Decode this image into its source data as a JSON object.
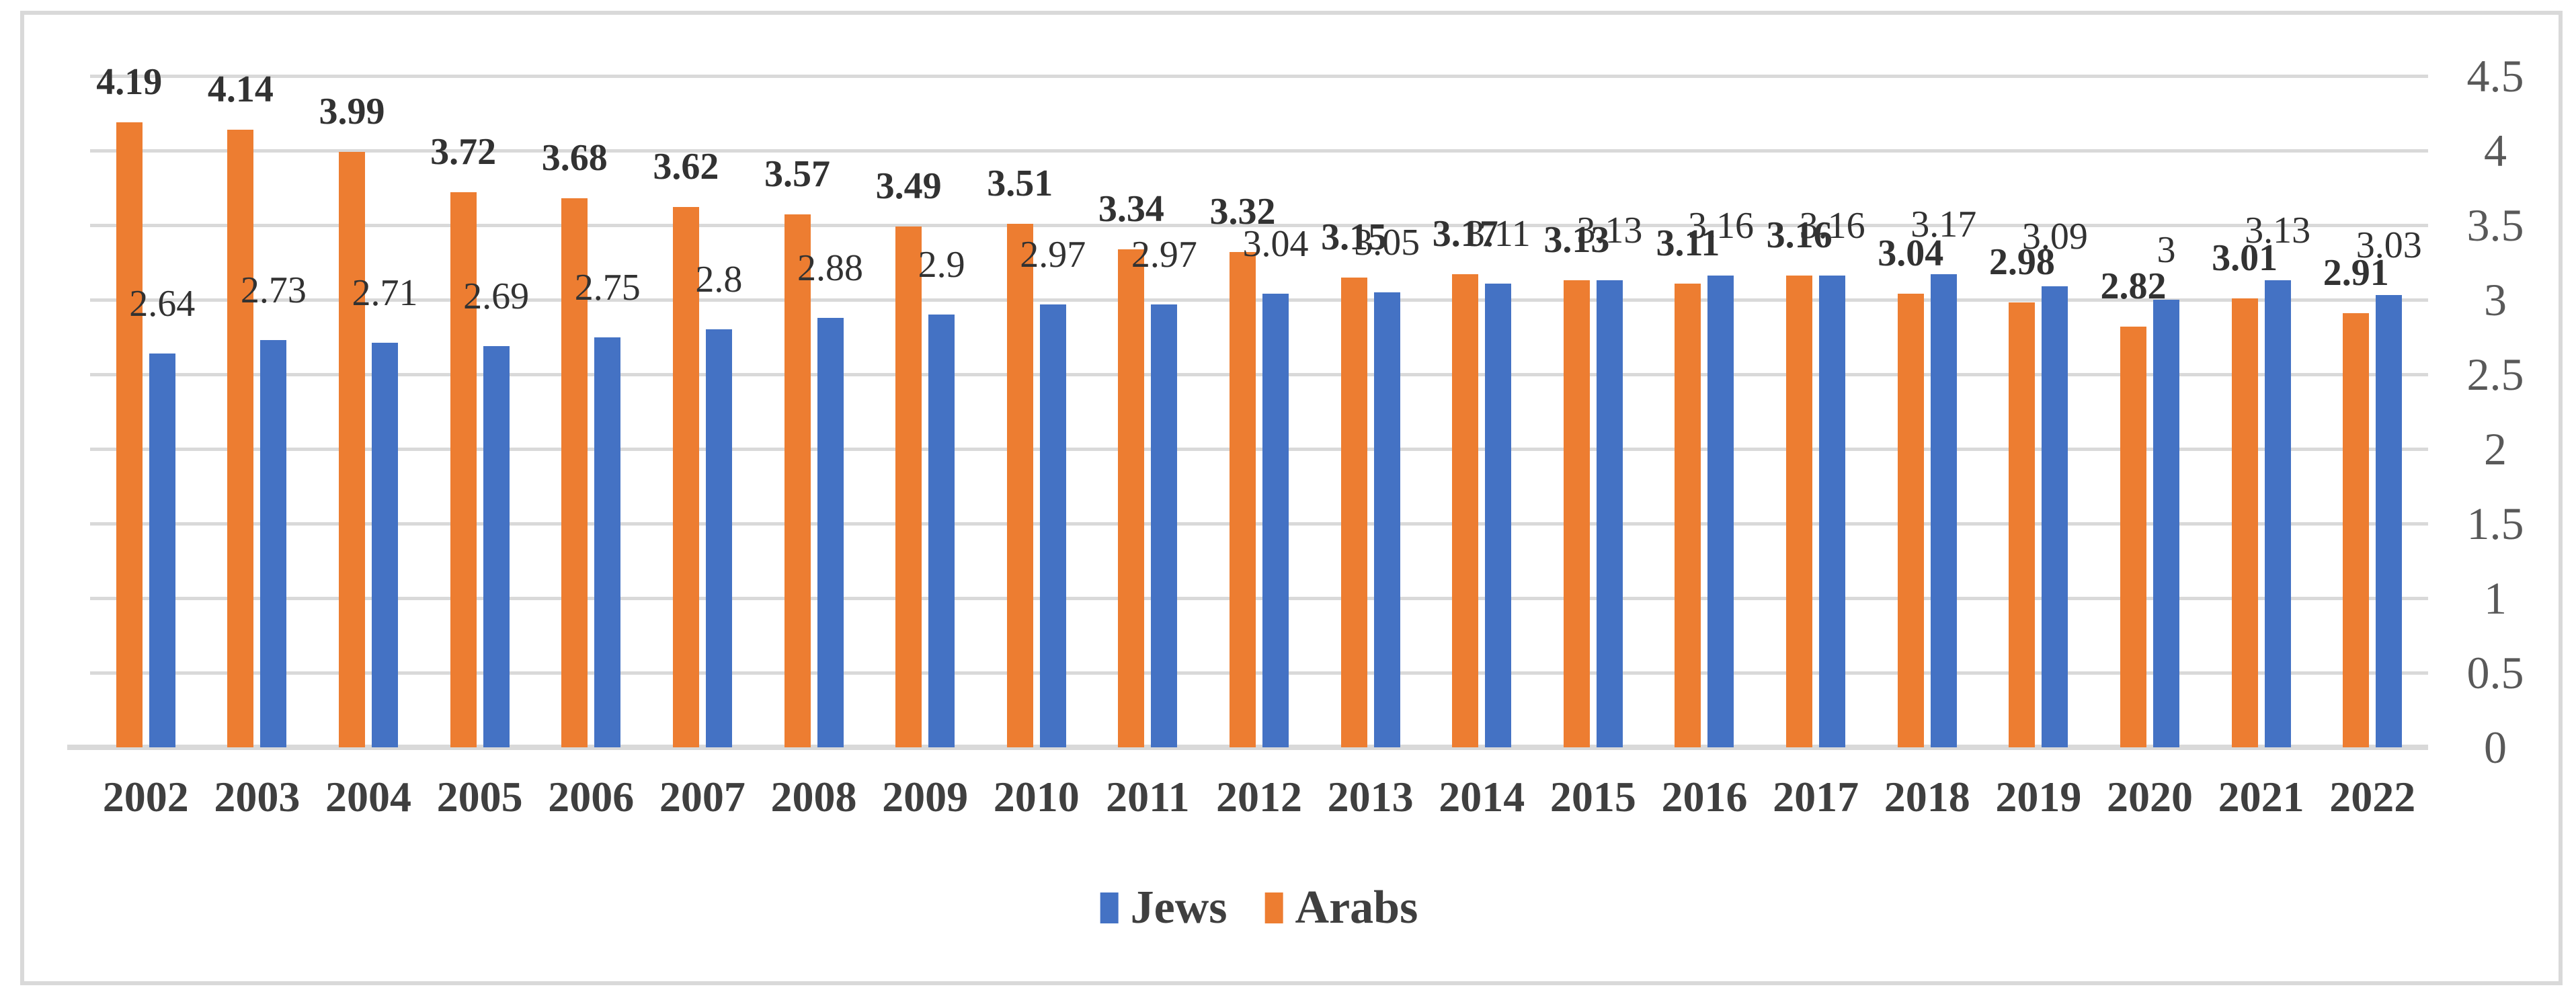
{
  "chart_data": {
    "type": "bar",
    "title": "",
    "categories": [
      "2002",
      "2003",
      "2004",
      "2005",
      "2006",
      "2007",
      "2008",
      "2009",
      "2010",
      "2011",
      "2012",
      "2013",
      "2014",
      "2015",
      "2016",
      "2017",
      "2018",
      "2019",
      "2020",
      "2021",
      "2022"
    ],
    "series": [
      {
        "name": "Jews",
        "color": "#4472C4",
        "label_weight": "regular",
        "values": [
          2.64,
          2.73,
          2.71,
          2.69,
          2.75,
          2.8,
          2.88,
          2.9,
          2.97,
          2.97,
          3.04,
          3.05,
          3.11,
          3.13,
          3.16,
          3.16,
          3.17,
          3.09,
          3,
          3.13,
          3.03
        ],
        "labels": [
          "2.64",
          "2.73",
          "2.71",
          "2.69",
          "2.75",
          "2.8",
          "2.88",
          "2.9",
          "2.97",
          "2.97",
          "3.04",
          "3.05",
          "3.11",
          "3.13",
          "3.16",
          "3.16",
          "3.17",
          "3.09",
          "3",
          "3.13",
          "3.03"
        ]
      },
      {
        "name": "Arabs",
        "color": "#ED7D31",
        "label_weight": "bold",
        "values": [
          4.19,
          4.14,
          3.99,
          3.72,
          3.68,
          3.62,
          3.57,
          3.49,
          3.51,
          3.34,
          3.32,
          3.15,
          3.17,
          3.13,
          3.11,
          3.16,
          3.04,
          2.98,
          2.82,
          3.01,
          2.91
        ],
        "labels": [
          "4.19",
          "4.14",
          "3.99",
          "3.72",
          "3.68",
          "3.62",
          "3.57",
          "3.49",
          "3.51",
          "3.34",
          "3.32",
          "3.15",
          "3.17",
          "3.13",
          "3.11",
          "3.16",
          "3.04",
          "2.98",
          "2.82",
          "3.01",
          "2.91"
        ]
      }
    ],
    "cluster_order": [
      "Arabs",
      "Jews"
    ],
    "y_axis": {
      "min": 0,
      "max": 4.5,
      "step": 0.5,
      "side": "right",
      "ticks": [
        "4.5",
        "4",
        "3.5",
        "3",
        "2.5",
        "2",
        "1.5",
        "1",
        "0.5",
        "0"
      ]
    },
    "x_axis": {
      "label": ""
    },
    "grid": "horizontal",
    "legend_position": "bottom-center"
  },
  "colors": {
    "jews_blue": "#4472C4",
    "arabs_orange": "#ED7D31",
    "gridline": "#D9D9D9",
    "frame_border": "#D9D9D9",
    "data_label_text": "#323232",
    "year_text": "#3F3F3F",
    "axis_tick_text": "#595959"
  }
}
